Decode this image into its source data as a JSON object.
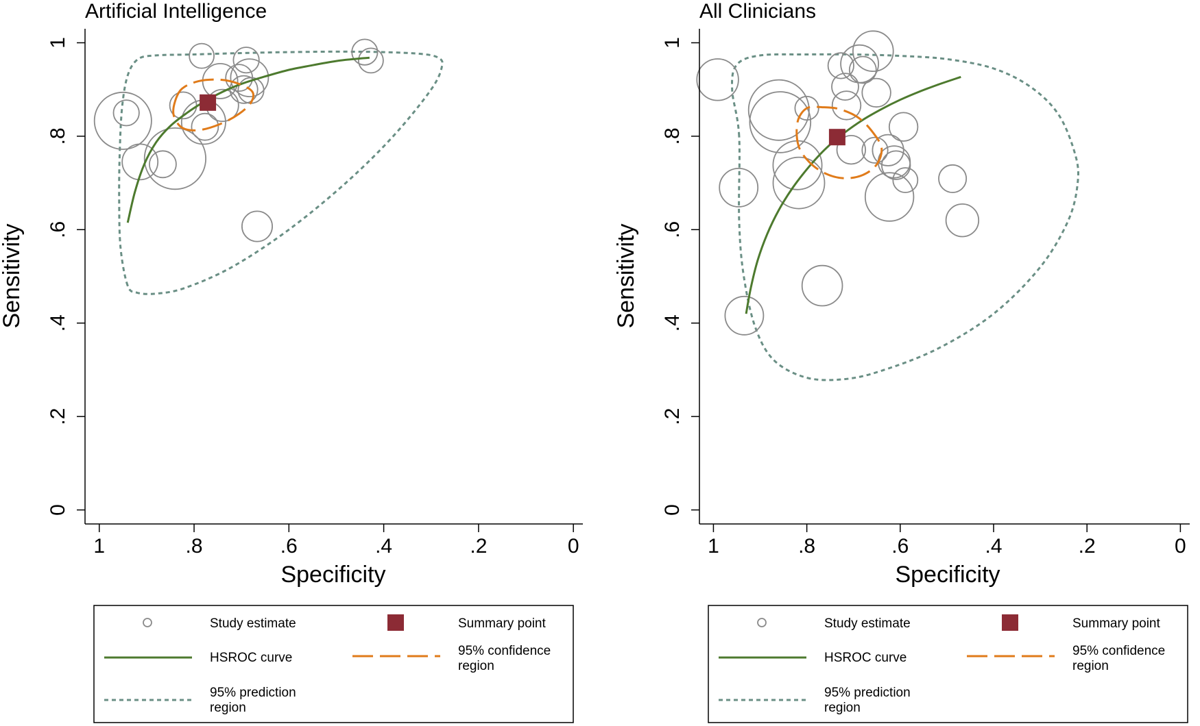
{
  "colors": {
    "study_circle": "#8a8a8a",
    "summary_point": "#8c2b35",
    "hsroc": "#4d7a2e",
    "confidence": "#e07b1a",
    "prediction": "#6a8f85",
    "axis": "#000000",
    "background": "#ffffff"
  },
  "chart_data": [
    {
      "type": "scatter",
      "title": "Artificial Intelligence",
      "xlabel": "Specificity",
      "ylabel": "Sensitivity",
      "xlim": [
        1.03,
        -0.02
      ],
      "ylim": [
        -0.03,
        1.03
      ],
      "x_ticks": [
        1,
        0.8,
        0.6,
        0.4,
        0.2,
        0
      ],
      "x_tick_labels": [
        "1",
        ".8",
        ".6",
        ".4",
        ".2",
        "0"
      ],
      "y_ticks": [
        0,
        0.2,
        0.4,
        0.6,
        0.8,
        1
      ],
      "y_tick_labels": [
        "0",
        ".2",
        ".4",
        ".6",
        ".8",
        "1"
      ],
      "studies": [
        {
          "spec": 0.95,
          "sens": 0.833,
          "weight": 64
        },
        {
          "spec": 0.943,
          "sens": 0.85,
          "weight": 13
        },
        {
          "spec": 0.84,
          "sens": 0.752,
          "weight": 74
        },
        {
          "spec": 0.914,
          "sens": 0.745,
          "weight": 25
        },
        {
          "spec": 0.866,
          "sens": 0.74,
          "weight": 14
        },
        {
          "spec": 0.784,
          "sens": 0.972,
          "weight": 12
        },
        {
          "spec": 0.69,
          "sens": 0.963,
          "weight": 13
        },
        {
          "spec": 0.44,
          "sens": 0.98,
          "weight": 13
        },
        {
          "spec": 0.427,
          "sens": 0.962,
          "weight": 12
        },
        {
          "spec": 0.745,
          "sens": 0.918,
          "weight": 24
        },
        {
          "spec": 0.705,
          "sens": 0.925,
          "weight": 14
        },
        {
          "spec": 0.683,
          "sens": 0.925,
          "weight": 28
        },
        {
          "spec": 0.695,
          "sens": 0.9,
          "weight": 15
        },
        {
          "spec": 0.68,
          "sens": 0.898,
          "weight": 13
        },
        {
          "spec": 0.74,
          "sens": 0.866,
          "weight": 20
        },
        {
          "spec": 0.823,
          "sens": 0.866,
          "weight": 14
        },
        {
          "spec": 0.78,
          "sens": 0.83,
          "weight": 38
        },
        {
          "spec": 0.777,
          "sens": 0.82,
          "weight": 14
        },
        {
          "spec": 0.667,
          "sens": 0.607,
          "weight": 18
        }
      ],
      "summary_point": {
        "spec": 0.771,
        "sens": 0.872
      },
      "hsroc": [
        [
          0.94,
          0.615
        ],
        [
          0.925,
          0.68
        ],
        [
          0.905,
          0.74
        ],
        [
          0.88,
          0.787
        ],
        [
          0.85,
          0.822
        ],
        [
          0.815,
          0.85
        ],
        [
          0.78,
          0.873
        ],
        [
          0.74,
          0.895
        ],
        [
          0.7,
          0.912
        ],
        [
          0.65,
          0.928
        ],
        [
          0.6,
          0.942
        ],
        [
          0.55,
          0.952
        ],
        [
          0.5,
          0.961
        ],
        [
          0.455,
          0.966
        ],
        [
          0.43,
          0.968
        ]
      ],
      "confidence_region": [
        [
          0.84,
          0.875
        ],
        [
          0.825,
          0.902
        ],
        [
          0.79,
          0.918
        ],
        [
          0.745,
          0.921
        ],
        [
          0.705,
          0.912
        ],
        [
          0.677,
          0.895
        ],
        [
          0.68,
          0.872
        ],
        [
          0.705,
          0.848
        ],
        [
          0.745,
          0.826
        ],
        [
          0.79,
          0.813
        ],
        [
          0.825,
          0.818
        ],
        [
          0.843,
          0.845
        ],
        [
          0.84,
          0.875
        ]
      ],
      "prediction_region": [
        [
          0.94,
          0.48
        ],
        [
          0.955,
          0.56
        ],
        [
          0.958,
          0.66
        ],
        [
          0.957,
          0.76
        ],
        [
          0.952,
          0.86
        ],
        [
          0.94,
          0.93
        ],
        [
          0.918,
          0.965
        ],
        [
          0.88,
          0.973
        ],
        [
          0.8,
          0.975
        ],
        [
          0.7,
          0.978
        ],
        [
          0.6,
          0.98
        ],
        [
          0.5,
          0.981
        ],
        [
          0.4,
          0.98
        ],
        [
          0.32,
          0.976
        ],
        [
          0.285,
          0.968
        ],
        [
          0.277,
          0.95
        ],
        [
          0.3,
          0.9
        ],
        [
          0.38,
          0.8
        ],
        [
          0.48,
          0.7
        ],
        [
          0.6,
          0.6
        ],
        [
          0.72,
          0.52
        ],
        [
          0.82,
          0.475
        ],
        [
          0.88,
          0.463
        ],
        [
          0.92,
          0.465
        ],
        [
          0.94,
          0.48
        ]
      ]
    },
    {
      "type": "scatter",
      "title": "All Clinicians",
      "xlabel": "Specificity",
      "ylabel": "Sensitivity",
      "xlim": [
        1.03,
        -0.02
      ],
      "ylim": [
        -0.03,
        1.03
      ],
      "x_ticks": [
        1,
        0.8,
        0.6,
        0.4,
        0.2,
        0
      ],
      "x_tick_labels": [
        "1",
        ".8",
        ".6",
        ".4",
        ".2",
        "0"
      ],
      "y_ticks": [
        0,
        0.2,
        0.4,
        0.6,
        0.8,
        1
      ],
      "y_tick_labels": [
        "0",
        ".2",
        ".4",
        ".6",
        ".8",
        "1"
      ],
      "studies": [
        {
          "spec": 0.991,
          "sens": 0.921,
          "weight": 34
        },
        {
          "spec": 0.946,
          "sens": 0.69,
          "weight": 29
        },
        {
          "spec": 0.934,
          "sens": 0.416,
          "weight": 29
        },
        {
          "spec": 0.86,
          "sens": 0.856,
          "weight": 72
        },
        {
          "spec": 0.857,
          "sens": 0.83,
          "weight": 73
        },
        {
          "spec": 0.82,
          "sens": 0.738,
          "weight": 47
        },
        {
          "spec": 0.817,
          "sens": 0.7,
          "weight": 52
        },
        {
          "spec": 0.8,
          "sens": 0.86,
          "weight": 11
        },
        {
          "spec": 0.767,
          "sens": 0.48,
          "weight": 32
        },
        {
          "spec": 0.727,
          "sens": 0.951,
          "weight": 13
        },
        {
          "spec": 0.718,
          "sens": 0.906,
          "weight": 14
        },
        {
          "spec": 0.715,
          "sens": 0.866,
          "weight": 16
        },
        {
          "spec": 0.705,
          "sens": 0.771,
          "weight": 16
        },
        {
          "spec": 0.68,
          "sens": 0.942,
          "weight": 14
        },
        {
          "spec": 0.687,
          "sens": 0.955,
          "weight": 28
        },
        {
          "spec": 0.658,
          "sens": 0.982,
          "weight": 32
        },
        {
          "spec": 0.654,
          "sens": 0.77,
          "weight": 13
        },
        {
          "spec": 0.651,
          "sens": 0.893,
          "weight": 16
        },
        {
          "spec": 0.623,
          "sens": 0.67,
          "weight": 46
        },
        {
          "spec": 0.626,
          "sens": 0.77,
          "weight": 19
        },
        {
          "spec": 0.613,
          "sens": 0.745,
          "weight": 20
        },
        {
          "spec": 0.609,
          "sens": 0.738,
          "weight": 16
        },
        {
          "spec": 0.593,
          "sens": 0.82,
          "weight": 16
        },
        {
          "spec": 0.589,
          "sens": 0.706,
          "weight": 12
        },
        {
          "spec": 0.488,
          "sens": 0.709,
          "weight": 15
        },
        {
          "spec": 0.467,
          "sens": 0.62,
          "weight": 21
        }
      ],
      "summary_point": {
        "spec": 0.735,
        "sens": 0.798
      },
      "hsroc": [
        [
          0.93,
          0.42
        ],
        [
          0.92,
          0.475
        ],
        [
          0.905,
          0.535
        ],
        [
          0.885,
          0.59
        ],
        [
          0.86,
          0.642
        ],
        [
          0.83,
          0.69
        ],
        [
          0.795,
          0.735
        ],
        [
          0.76,
          0.773
        ],
        [
          0.72,
          0.807
        ],
        [
          0.68,
          0.835
        ],
        [
          0.64,
          0.858
        ],
        [
          0.6,
          0.878
        ],
        [
          0.56,
          0.895
        ],
        [
          0.52,
          0.91
        ],
        [
          0.47,
          0.927
        ]
      ],
      "confidence_region": [
        [
          0.82,
          0.83
        ],
        [
          0.8,
          0.86
        ],
        [
          0.765,
          0.862
        ],
        [
          0.73,
          0.858
        ],
        [
          0.69,
          0.84
        ],
        [
          0.66,
          0.81
        ],
        [
          0.64,
          0.775
        ],
        [
          0.65,
          0.74
        ],
        [
          0.68,
          0.717
        ],
        [
          0.72,
          0.71
        ],
        [
          0.76,
          0.72
        ],
        [
          0.795,
          0.745
        ],
        [
          0.818,
          0.78
        ],
        [
          0.82,
          0.83
        ]
      ],
      "prediction_region": [
        [
          0.945,
          0.8
        ],
        [
          0.96,
          0.9
        ],
        [
          0.95,
          0.953
        ],
        [
          0.9,
          0.973
        ],
        [
          0.8,
          0.975
        ],
        [
          0.7,
          0.975
        ],
        [
          0.6,
          0.972
        ],
        [
          0.5,
          0.965
        ],
        [
          0.4,
          0.945
        ],
        [
          0.32,
          0.905
        ],
        [
          0.26,
          0.845
        ],
        [
          0.225,
          0.76
        ],
        [
          0.22,
          0.7
        ],
        [
          0.24,
          0.62
        ],
        [
          0.3,
          0.52
        ],
        [
          0.4,
          0.42
        ],
        [
          0.52,
          0.345
        ],
        [
          0.64,
          0.298
        ],
        [
          0.72,
          0.28
        ],
        [
          0.8,
          0.283
        ],
        [
          0.87,
          0.32
        ],
        [
          0.91,
          0.39
        ],
        [
          0.935,
          0.5
        ],
        [
          0.945,
          0.62
        ],
        [
          0.945,
          0.8
        ]
      ]
    }
  ],
  "legend": {
    "study_estimate": "Study estimate",
    "summary_point": "Summary point",
    "hsroc_curve": "HSROC curve",
    "confidence_line1": "95% confidence",
    "confidence_line2": "region",
    "prediction_line1": "95% prediction",
    "prediction_line2": "region"
  }
}
